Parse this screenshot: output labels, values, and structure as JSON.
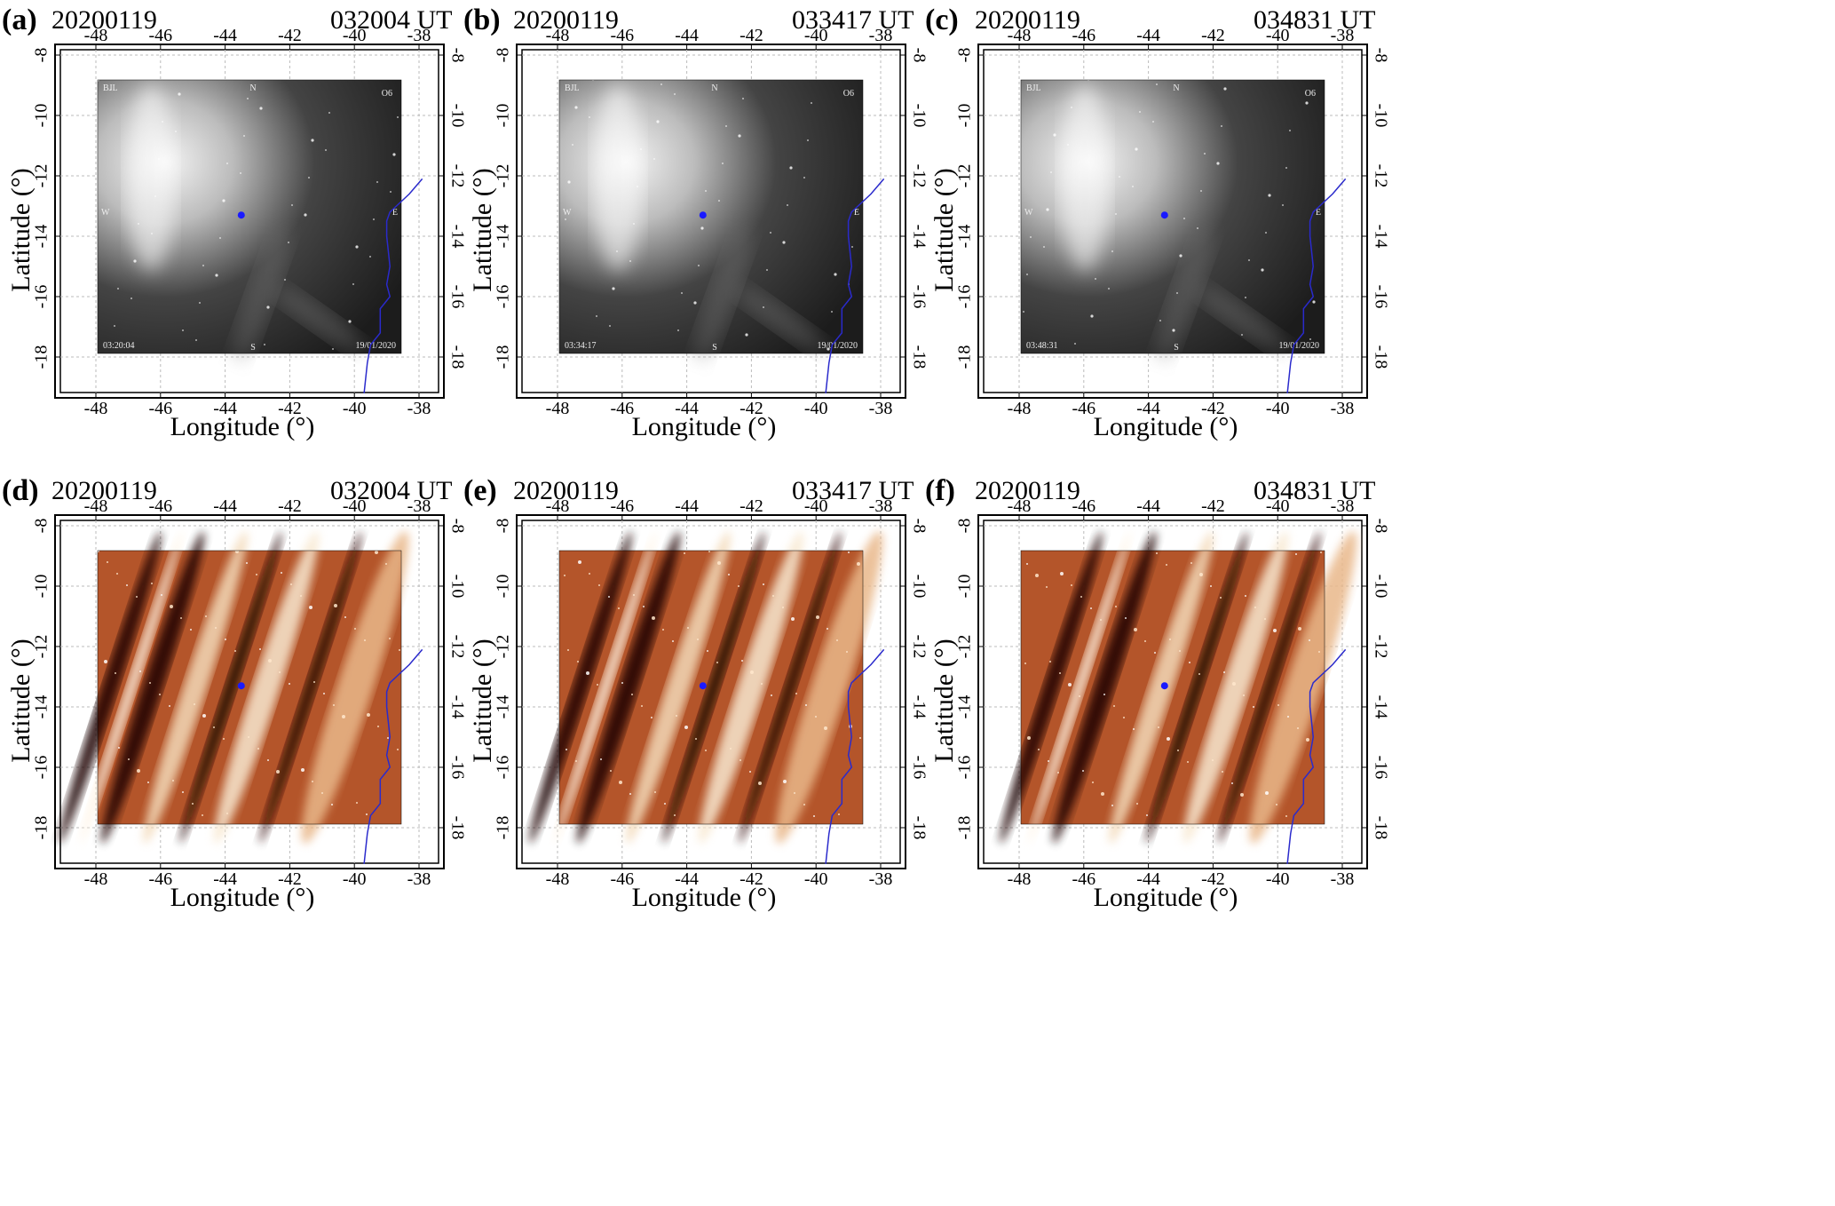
{
  "figure": {
    "panels": [
      {
        "id": "(a)",
        "date": "20200119",
        "time": "032004 UT",
        "kind": "airglow",
        "timestamp": "03:20:04",
        "datestamp": "19/01/2020",
        "station": "BJL",
        "code": "O6"
      },
      {
        "id": "(b)",
        "date": "20200119",
        "time": "033417 UT",
        "kind": "airglow",
        "timestamp": "03:34:17",
        "datestamp": "19/01/2020",
        "station": "BJL",
        "code": "O6"
      },
      {
        "id": "(c)",
        "date": "20200119",
        "time": "034831 UT",
        "kind": "airglow",
        "timestamp": "03:48:31",
        "datestamp": "19/01/2020",
        "station": "BJL",
        "code": "O6"
      },
      {
        "id": "(d)",
        "date": "20200119",
        "time": "032004 UT",
        "kind": "difference"
      },
      {
        "id": "(e)",
        "date": "20200119",
        "time": "033417 UT",
        "kind": "difference"
      },
      {
        "id": "(f)",
        "date": "20200119",
        "time": "034831 UT",
        "kind": "difference"
      }
    ],
    "xlabel": "Longitude (°)",
    "ylabel": "Latitude (°)",
    "xticks": [
      "-48",
      "-46",
      "-44",
      "-42",
      "-40",
      "-38"
    ],
    "yticks": [
      "-8",
      "-10",
      "-12",
      "-14",
      "-16",
      "-18"
    ],
    "compass": {
      "n": "N",
      "s": "S",
      "e": "E",
      "w": "W"
    },
    "marker_color": "#1a1aff",
    "coast_color": "#2a2acc"
  }
}
